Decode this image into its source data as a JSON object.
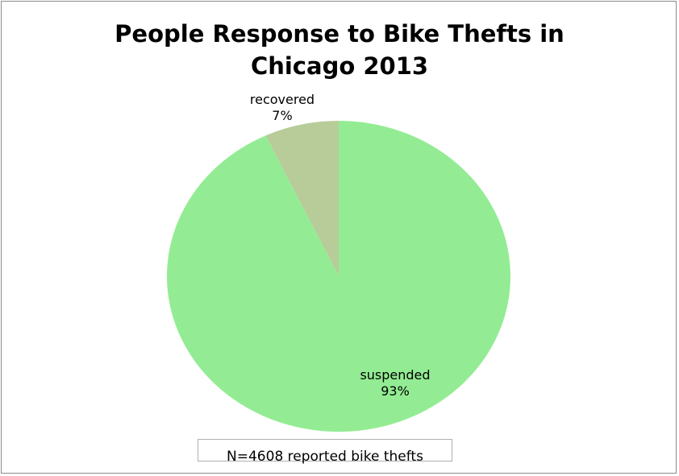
{
  "chart_data": {
    "type": "pie",
    "title_lines": [
      "People Response to Bike Thefts in",
      "Chicago 2013"
    ],
    "slices": [
      {
        "name": "recovered",
        "value": 7,
        "label": "7%",
        "color": "#b7cc98"
      },
      {
        "name": "suspended",
        "value": 93,
        "label": "93%",
        "color": "#93ec93"
      }
    ],
    "legend": "none",
    "annotation": "N=4608 reported bike thefts"
  }
}
